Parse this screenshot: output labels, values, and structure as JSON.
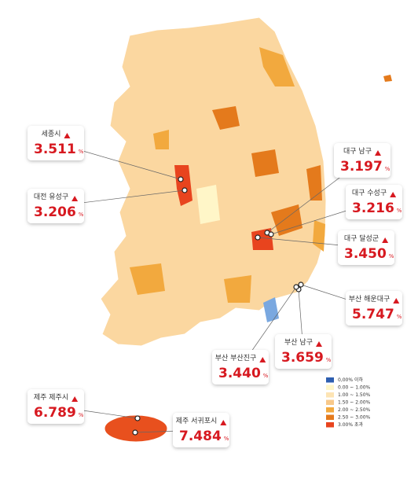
{
  "callouts": [
    {
      "region": "세종시",
      "value": "3.511",
      "unit": "%"
    },
    {
      "region": "대전 유성구",
      "value": "3.206",
      "unit": "%"
    },
    {
      "region": "대구 남구",
      "value": "3.197",
      "unit": "%"
    },
    {
      "region": "대구 수성구",
      "value": "3.216",
      "unit": "%"
    },
    {
      "region": "대구 달성군",
      "value": "3.450",
      "unit": "%"
    },
    {
      "region": "부산 해운대구",
      "value": "5.747",
      "unit": "%"
    },
    {
      "region": "부산 남구",
      "value": "3.659",
      "unit": "%"
    },
    {
      "region": "부산 부산진구",
      "value": "3.440",
      "unit": "%"
    },
    {
      "region": "제주 제주시",
      "value": "6.789",
      "unit": "%"
    },
    {
      "region": "제주 서귀포시",
      "value": "7.484",
      "unit": "%"
    }
  ],
  "legend": [
    {
      "label": "0,00% 이하",
      "color": "#2e5fb0"
    },
    {
      "label": "0.00 ~ 1.00%",
      "color": "#fff6c8"
    },
    {
      "label": "1.00 ~ 1.50%",
      "color": "#fde4b4"
    },
    {
      "label": "1.50 ~ 2.00%",
      "color": "#f8c98a"
    },
    {
      "label": "2.00 ~ 2.50%",
      "color": "#f2a93e"
    },
    {
      "label": "2.50 ~ 3.00%",
      "color": "#e47a1c"
    },
    {
      "label": "3.00% 초과",
      "color": "#e8441e"
    }
  ]
}
